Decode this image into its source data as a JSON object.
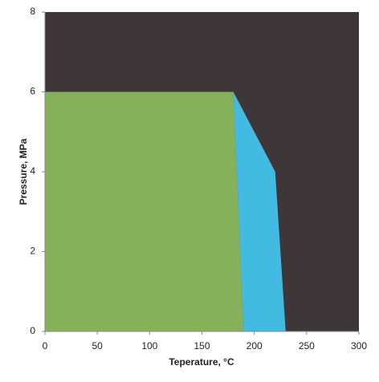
{
  "chart_data": {
    "type": "area",
    "x_label": "Teperature, °C",
    "y_label": "Pressure, MPa",
    "series": [
      {
        "color": "#3d373a",
        "x": [
          0,
          0,
          300,
          300
        ],
        "values": [
          0,
          8,
          8,
          0
        ]
      },
      {
        "color": "#86b15b",
        "x": [
          0,
          0,
          180,
          190
        ],
        "values": [
          0,
          6,
          6,
          0
        ]
      },
      {
        "color": "#42bae2",
        "x": [
          180,
          220,
          230,
          190
        ],
        "values": [
          6,
          4,
          0,
          0
        ]
      }
    ],
    "xlim": [
      0,
      300
    ],
    "xticks": [
      0,
      50,
      100,
      150,
      200,
      250,
      300
    ],
    "ylim": [
      0,
      8
    ],
    "yticks": [
      0,
      2,
      4,
      6,
      8
    ],
    "grid": false
  }
}
